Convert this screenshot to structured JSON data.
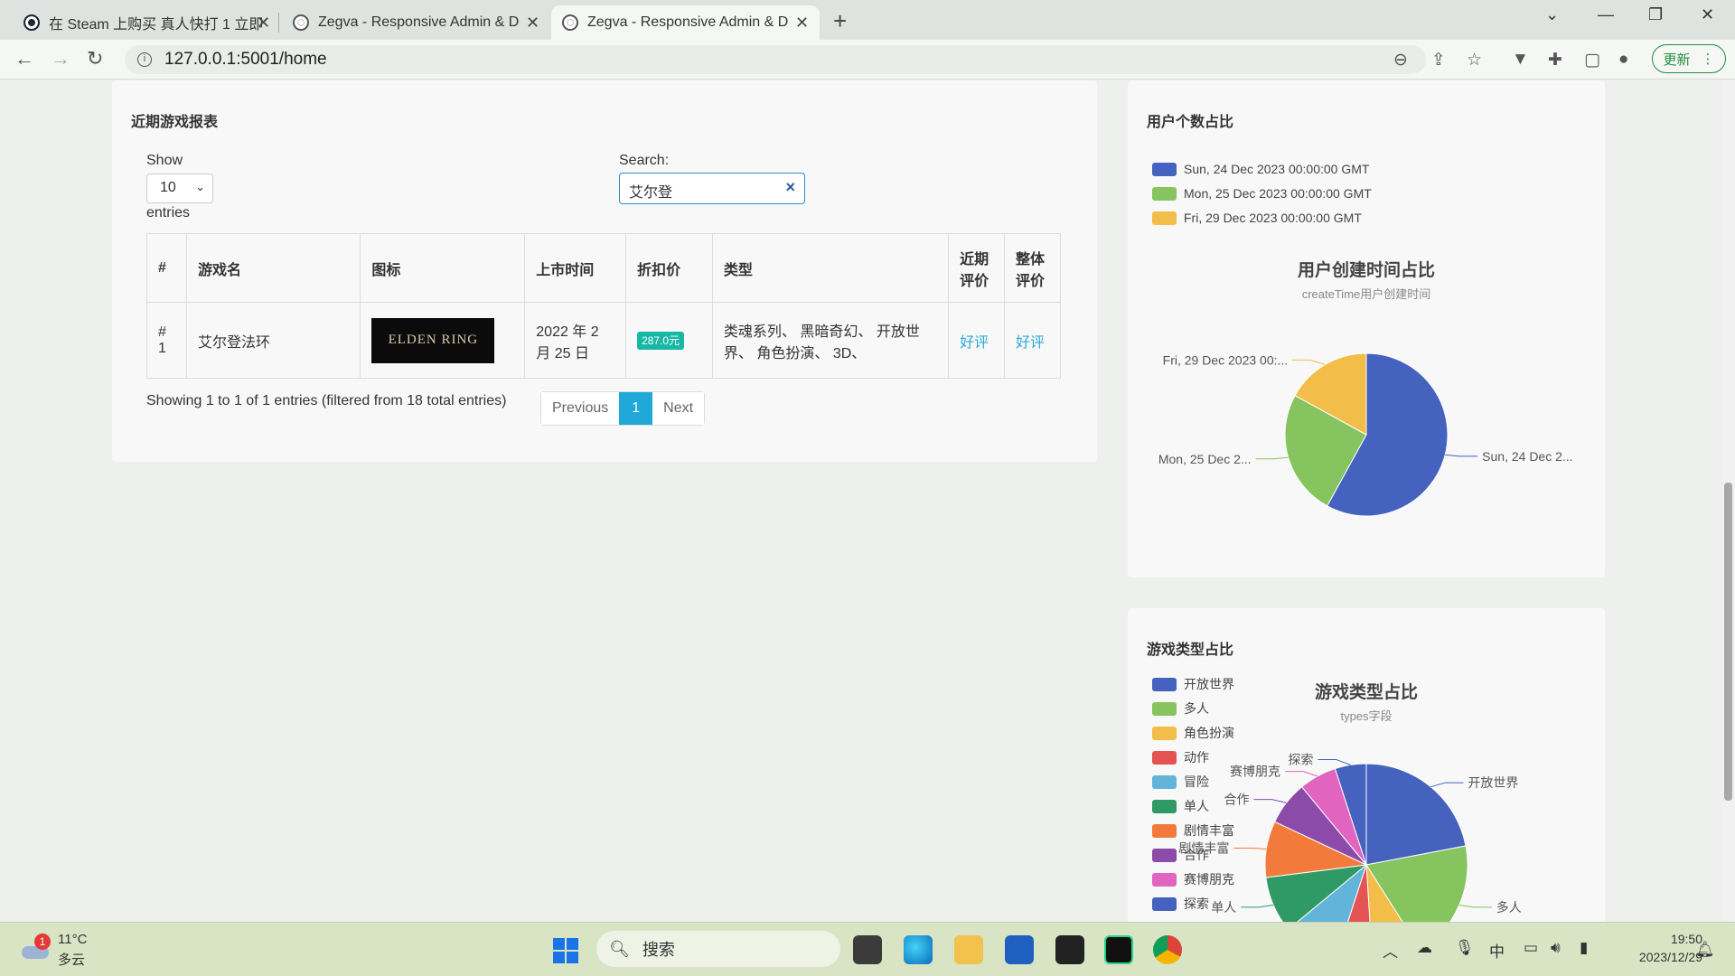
{
  "browser": {
    "tabs": [
      {
        "title": "在 Steam 上购买 真人快打 1 立即"
      },
      {
        "title": "Zegva - Responsive Admin & D"
      },
      {
        "title": "Zegva - Responsive Admin & D"
      }
    ],
    "url": "127.0.0.1:5001/home",
    "update_label": "更新"
  },
  "report": {
    "title": "近期游戏报表",
    "show_label": "Show",
    "entries_value": "10",
    "entries_label": "entries",
    "search_label": "Search:",
    "search_value": "艾尔登",
    "columns": [
      "#",
      "游戏名",
      "图标",
      "上市时间",
      "折扣价",
      "类型",
      "近期评价",
      "整体评价"
    ],
    "rows": [
      {
        "index": "# 1",
        "name": "艾尔登法环",
        "icon_text": "ELDEN RING",
        "release": "2022 年 2 月 25 日",
        "price": "287.0元",
        "types": "类魂系列、 黑暗奇幻、 开放世界、 角色扮演、 3D、",
        "recent": "好评",
        "overall": "好评"
      }
    ],
    "info": "Showing 1 to 1 of 1 entries (filtered from 18 total entries)",
    "pager": {
      "prev": "Previous",
      "current": "1",
      "next": "Next"
    }
  },
  "user_card": {
    "title": "用户个数占比",
    "chart_data": {
      "type": "pie",
      "title": "用户创建时间占比",
      "subtitle": "createTime用户创建时间",
      "categories": [
        "Sun, 24 Dec 2023 00:00:00 GMT",
        "Mon, 25 Dec 2023 00:00:00 GMT",
        "Fri, 29 Dec 2023 00:00:00 GMT"
      ],
      "values": [
        58,
        25,
        17
      ],
      "colors": [
        "#4562be",
        "#85c45e",
        "#f2bd48"
      ],
      "slice_labels": [
        "Sun, 24 Dec 2...",
        "Mon, 25 Dec 2...",
        "Fri, 29 Dec 2023 00:..."
      ],
      "legend": "top-left"
    }
  },
  "type_card": {
    "title": "游戏类型占比",
    "chart_data": {
      "type": "pie",
      "title": "游戏类型占比",
      "subtitle": "types字段",
      "categories": [
        "开放世界",
        "多人",
        "角色扮演",
        "动作",
        "冒险",
        "单人",
        "剧情丰富",
        "合作",
        "赛博朋克",
        "探索"
      ],
      "values": [
        22,
        19,
        8,
        6,
        9,
        9,
        9,
        7,
        6,
        5
      ],
      "colors": [
        "#4562be",
        "#85c45e",
        "#f2bd48",
        "#e45454",
        "#62b5d8",
        "#2f9a66",
        "#f27b3c",
        "#8c4ba8",
        "#e064c0",
        "#4562be"
      ],
      "visible_labels": [
        "开放世界",
        "多人",
        "单人",
        "剧情丰富",
        "合作",
        "赛博朋克",
        "探索"
      ],
      "legend": "left"
    }
  },
  "taskbar": {
    "weather_temp": "11°C",
    "weather_desc": "多云",
    "weather_badge": "1",
    "search_placeholder": "搜索",
    "ime": "中",
    "time": "19:50",
    "date": "2023/12/29"
  }
}
